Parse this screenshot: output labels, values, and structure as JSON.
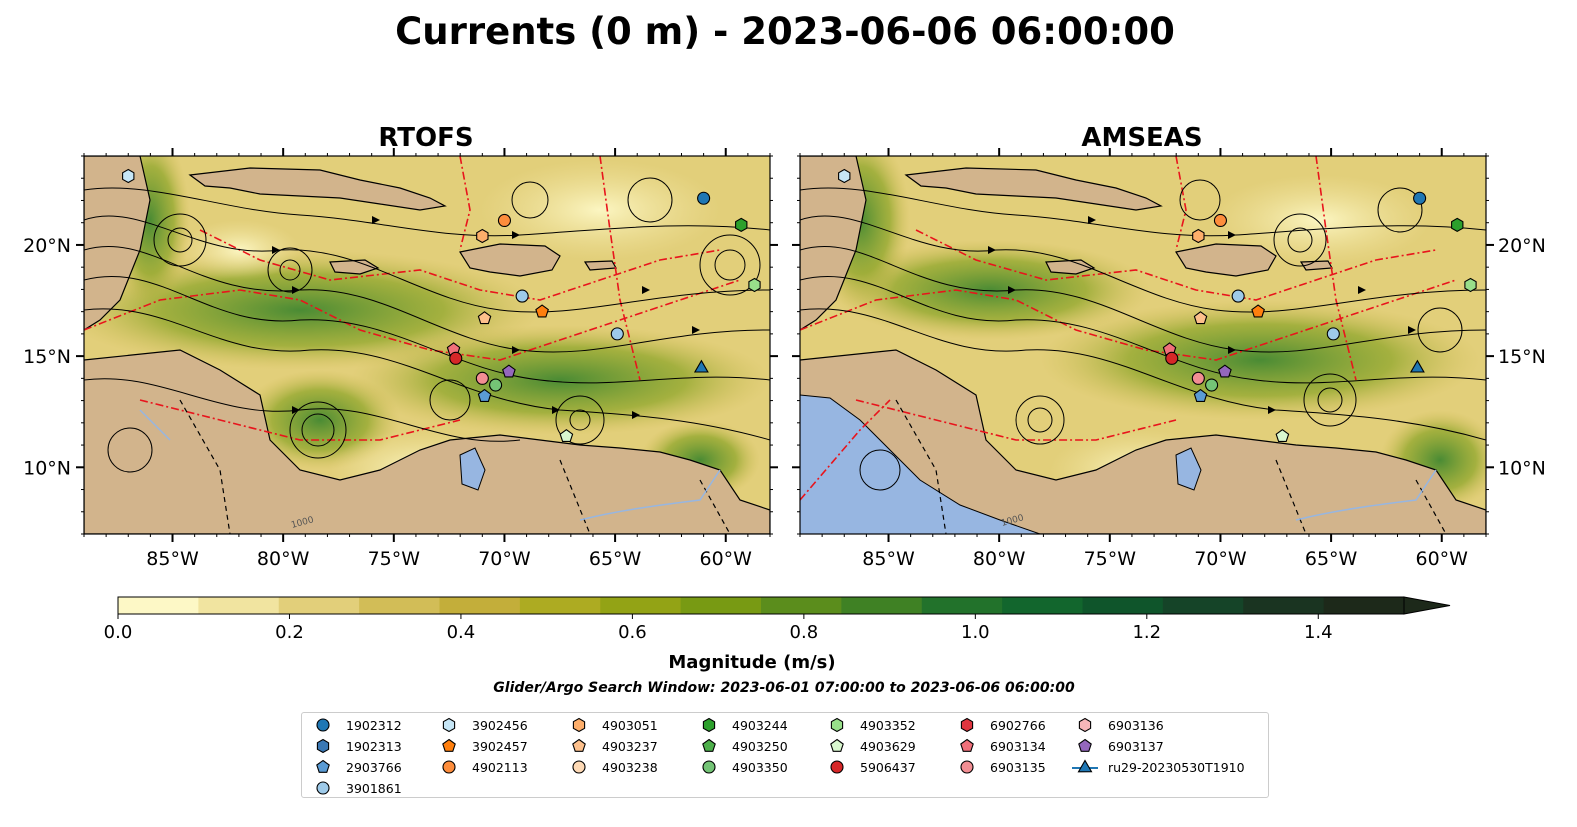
{
  "title": "Currents (0 m) - 2023-06-06 06:00:00",
  "panels": [
    {
      "title": "RTOFS"
    },
    {
      "title": "AMSEAS"
    }
  ],
  "axes": {
    "lon_ticks": [
      "85°W",
      "80°W",
      "75°W",
      "70°W",
      "65°W",
      "60°W"
    ],
    "lon_values": [
      -85,
      -80,
      -75,
      -70,
      -65,
      -60
    ],
    "lat_ticks": [
      "20°N",
      "15°N",
      "10°N"
    ],
    "lat_values": [
      20,
      15,
      10
    ],
    "lon_range": [
      -89,
      -58
    ],
    "lat_range": [
      7,
      24
    ],
    "contour_label": "1000"
  },
  "colorbar": {
    "label": "Magnitude (m/s)",
    "ticks": [
      "0.0",
      "0.2",
      "0.4",
      "0.6",
      "0.8",
      "1.0",
      "1.2",
      "1.4"
    ],
    "tick_values": [
      0,
      0.2,
      0.4,
      0.6,
      0.8,
      1.0,
      1.2,
      1.4
    ],
    "range": [
      0,
      1.5
    ],
    "extend": "max",
    "colors": [
      "#fdf8c6",
      "#f1e4a0",
      "#e2cf7a",
      "#d2bd57",
      "#c3ae3a",
      "#adab22",
      "#93a315",
      "#789a13",
      "#5b8d1c",
      "#3f8124",
      "#22722b",
      "#12662d",
      "#0f552b",
      "#154428",
      "#1a3421",
      "#1d291a"
    ]
  },
  "search_window": "Glider/Argo Search Window: 2023-06-01 07:00:00 to 2023-06-06 06:00:00",
  "colors": {
    "land": "#d2b48c",
    "pacific": "#97b6e1",
    "eez": "#e8141c",
    "border": "#000000"
  },
  "legend": [
    {
      "label": "1902312",
      "marker": "circle",
      "color": "#1f77b4"
    },
    {
      "label": "1902313",
      "marker": "hexagon",
      "color": "#3a78b4"
    },
    {
      "label": "2903766",
      "marker": "pentagon",
      "color": "#5a9bd4"
    },
    {
      "label": "3901861",
      "marker": "circle",
      "color": "#9ecae9"
    },
    {
      "label": "3902456",
      "marker": "hexagon",
      "color": "#c6e6f6"
    },
    {
      "label": "3902457",
      "marker": "pentagon",
      "color": "#ff7f0e"
    },
    {
      "label": "4902113",
      "marker": "circle",
      "color": "#fd8d3c"
    },
    {
      "label": "4903051",
      "marker": "hexagon",
      "color": "#fdae6b"
    },
    {
      "label": "4903237",
      "marker": "pentagon",
      "color": "#fdc08c"
    },
    {
      "label": "4903238",
      "marker": "circle",
      "color": "#fdd9b5"
    },
    {
      "label": "4903244",
      "marker": "hexagon",
      "color": "#2ca02c"
    },
    {
      "label": "4903250",
      "marker": "pentagon",
      "color": "#4daf4a"
    },
    {
      "label": "4903350",
      "marker": "circle",
      "color": "#74c476"
    },
    {
      "label": "4903352",
      "marker": "hexagon",
      "color": "#98df8a"
    },
    {
      "label": "4903629",
      "marker": "pentagon",
      "color": "#d9f7cf"
    },
    {
      "label": "5906437",
      "marker": "circle",
      "color": "#d62728"
    },
    {
      "label": "6902766",
      "marker": "hexagon",
      "color": "#e0353f"
    },
    {
      "label": "6903134",
      "marker": "pentagon",
      "color": "#f0707a"
    },
    {
      "label": "6903135",
      "marker": "circle",
      "color": "#f28e93"
    },
    {
      "label": "6903136",
      "marker": "hexagon",
      "color": "#f7b6b9"
    },
    {
      "label": "6903137",
      "marker": "pentagon",
      "color": "#9467bd"
    },
    {
      "label": "ru29-20230530T1910",
      "marker": "triangle-line",
      "color": "#1f77b4"
    }
  ],
  "floats": [
    {
      "label": "3902456",
      "lon": -87.0,
      "lat": 23.1
    },
    {
      "label": "4903051",
      "lon": -71.0,
      "lat": 20.4
    },
    {
      "label": "4902113",
      "lon": -70.0,
      "lat": 21.1
    },
    {
      "label": "1902312",
      "lon": -61.0,
      "lat": 22.1
    },
    {
      "label": "4903244",
      "lon": -59.3,
      "lat": 20.9
    },
    {
      "label": "3901861",
      "lon": -69.2,
      "lat": 17.7
    },
    {
      "label": "3902457",
      "lon": -68.3,
      "lat": 17.0
    },
    {
      "label": "4903237",
      "lon": -70.9,
      "lat": 16.7
    },
    {
      "label": "4903352",
      "lon": -58.7,
      "lat": 18.2
    },
    {
      "label": "3901861",
      "lon": -64.9,
      "lat": 16.0
    },
    {
      "label": "6903134",
      "lon": -72.3,
      "lat": 15.3
    },
    {
      "label": "5906437",
      "lon": -72.2,
      "lat": 14.9
    },
    {
      "label": "6903135",
      "lon": -71.0,
      "lat": 14.0
    },
    {
      "label": "4903350",
      "lon": -70.4,
      "lat": 13.7
    },
    {
      "label": "6903137",
      "lon": -69.8,
      "lat": 14.3
    },
    {
      "label": "2903766",
      "lon": -70.9,
      "lat": 13.2
    },
    {
      "label": "4903629",
      "lon": -67.2,
      "lat": 11.4
    },
    {
      "label": "ru29-20230530T1910",
      "lon": -61.1,
      "lat": 14.5
    }
  ]
}
